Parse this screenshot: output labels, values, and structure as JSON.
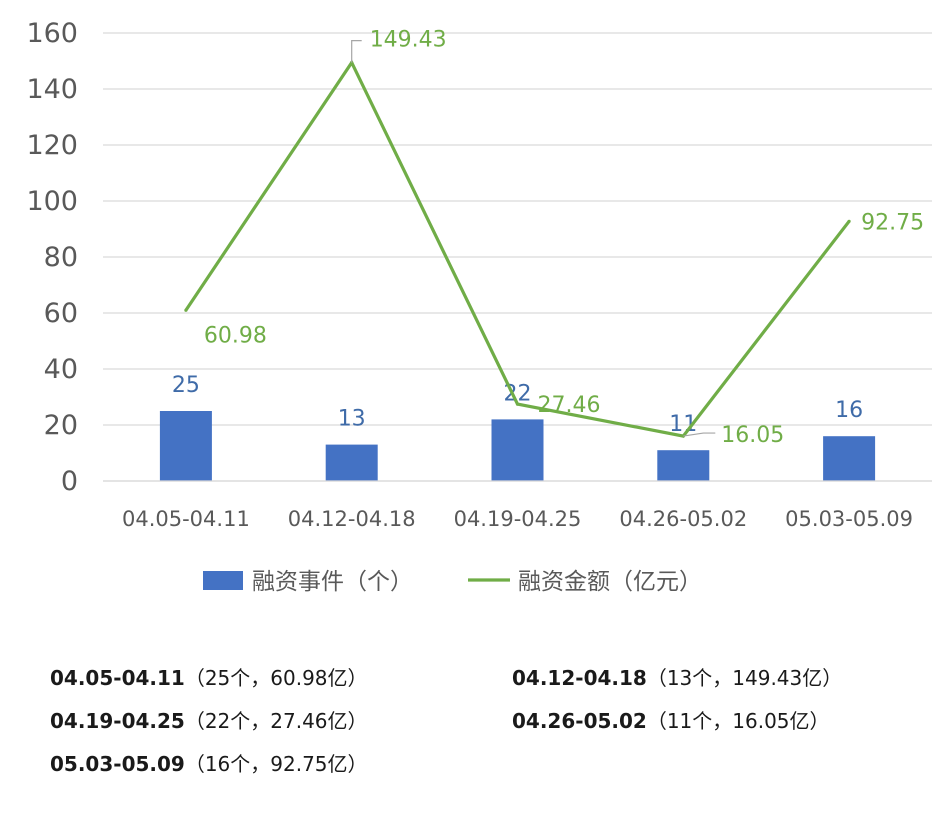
{
  "chart_data": {
    "type": "bar",
    "categories": [
      "04.05-04.11",
      "04.12-04.18",
      "04.19-04.25",
      "04.26-05.02",
      "05.03-05.09"
    ],
    "series": [
      {
        "name": "融资事件（个）",
        "type": "bar",
        "values": [
          25,
          13,
          22,
          11,
          16
        ],
        "color": "#4472C4",
        "label_color": "#3F6BA8"
      },
      {
        "name": "融资金额（亿元）",
        "type": "line",
        "values": [
          60.98,
          149.43,
          27.46,
          16.05,
          92.75
        ],
        "color": "#70AD47",
        "label_color": "#70AD47"
      }
    ],
    "ylim": [
      0,
      160
    ],
    "yticks": [
      0,
      20,
      40,
      60,
      80,
      100,
      120,
      140,
      160
    ],
    "grid": true,
    "legend_position": "bottom"
  },
  "summary": [
    {
      "period": "04.05-04.11",
      "detail": "（25个，60.98亿）"
    },
    {
      "period": "04.12-04.18",
      "detail": "（13个，149.43亿）"
    },
    {
      "period": "04.19-04.25",
      "detail": "（22个，27.46亿）"
    },
    {
      "period": "04.26-05.02",
      "detail": "（11个，16.05亿）"
    },
    {
      "period": "05.03-05.09",
      "detail": "（16个，92.75亿）"
    }
  ]
}
